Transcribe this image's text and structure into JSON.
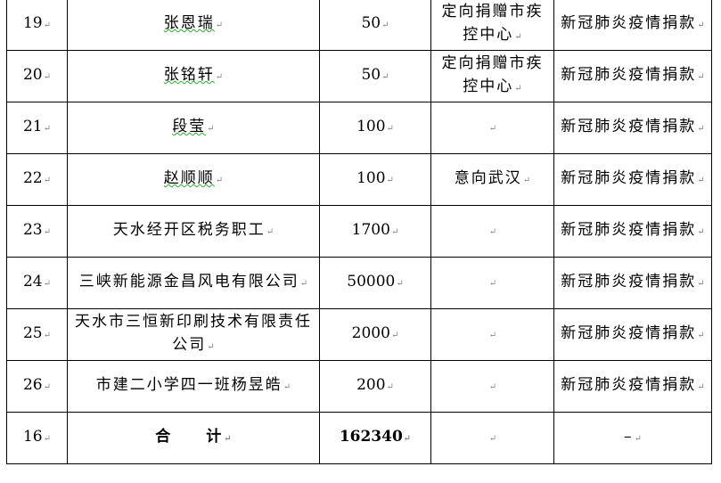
{
  "rows": [
    {
      "no": "19",
      "name": "张恩瑞",
      "amount": "50",
      "note": "定向捐赠市疾控中心",
      "purpose": "新冠肺炎疫情捐款"
    },
    {
      "no": "20",
      "name": "张铭轩",
      "amount": "50",
      "note": "定向捐赠市疾控中心",
      "purpose": "新冠肺炎疫情捐款"
    },
    {
      "no": "21",
      "name": "段莹",
      "amount": "100",
      "note": "",
      "purpose": "新冠肺炎疫情捐款"
    },
    {
      "no": "22",
      "name": "赵顺顺",
      "amount": "100",
      "note": "意向武汉",
      "purpose": "新冠肺炎疫情捐款"
    },
    {
      "no": "23",
      "name": "天水经开区税务职工",
      "amount": "1700",
      "note": "",
      "purpose": "新冠肺炎疫情捐款"
    },
    {
      "no": "24",
      "name": "三峡新能源金昌风电有限公司",
      "amount": "50000",
      "note": "",
      "purpose": "新冠肺炎疫情捐款"
    },
    {
      "no": "25",
      "name": "天水市三恒新印刷技术有限责任公司",
      "amount": "2000",
      "note": "",
      "purpose": "新冠肺炎疫情捐款"
    },
    {
      "no": "26",
      "name": "市建二小学四一班杨昱皓",
      "amount": "200",
      "note": "",
      "purpose": "新冠肺炎疫情捐款"
    }
  ],
  "total": {
    "no": "16",
    "label": "合　　计",
    "amount": "162340",
    "note": "",
    "purpose": "–"
  },
  "paragraph_mark": "↵"
}
